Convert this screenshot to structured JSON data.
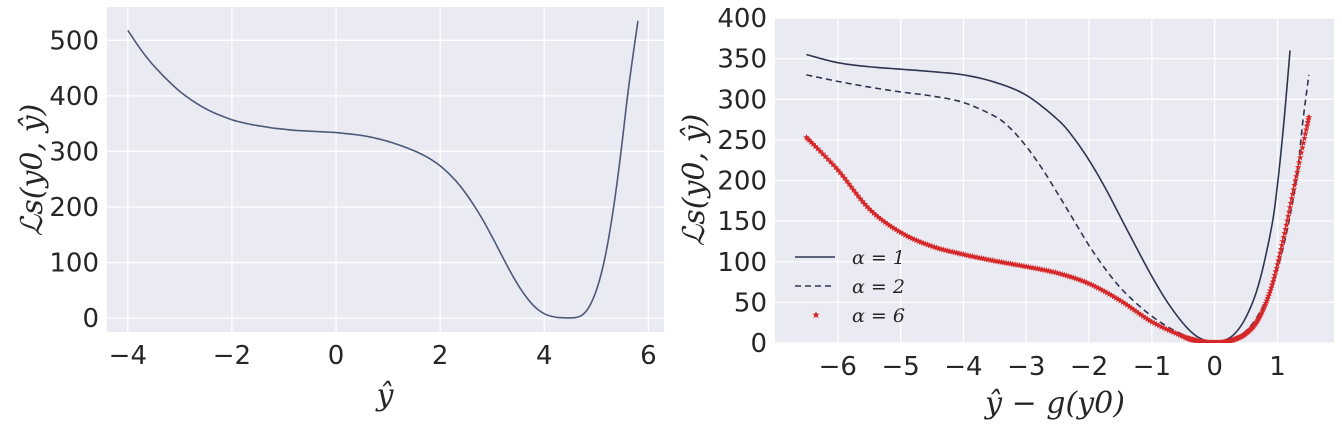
{
  "chart_data": [
    {
      "type": "line",
      "xlabel": "ŷ",
      "ylabel": "ℒs(y0, ŷ)",
      "xlim": [
        -4.4,
        6.3
      ],
      "ylim": [
        -25,
        560
      ],
      "xticks": [
        -4,
        -2,
        0,
        2,
        4,
        6
      ],
      "xtick_labels": [
        "−4",
        "−2",
        "0",
        "2",
        "4",
        "6"
      ],
      "yticks": [
        0,
        100,
        200,
        300,
        400,
        500
      ],
      "ytick_labels": [
        "0",
        "100",
        "200",
        "300",
        "400",
        "500"
      ],
      "grid": true,
      "series": [
        {
          "color": "#4c5a78",
          "style": "solid",
          "x": [
            -4.0,
            -3.8,
            -3.6,
            -3.4,
            -3.2,
            -3.0,
            -2.8,
            -2.6,
            -2.4,
            -2.2,
            -2.0,
            -1.8,
            -1.6,
            -1.4,
            -1.2,
            -1.0,
            -0.8,
            -0.6,
            -0.4,
            -0.2,
            0.0,
            0.2,
            0.4,
            0.6,
            0.8,
            1.0,
            1.2,
            1.4,
            1.6,
            1.8,
            2.0,
            2.2,
            2.4,
            2.6,
            2.8,
            3.0,
            3.2,
            3.4,
            3.6,
            3.8,
            4.0,
            4.2,
            4.4,
            4.5,
            4.6,
            4.7,
            4.8,
            4.9,
            5.0,
            5.1,
            5.2,
            5.3,
            5.4,
            5.5,
            5.6,
            5.7,
            5.8
          ],
          "y": [
            518,
            490,
            465,
            444,
            425,
            408,
            394,
            382,
            372,
            364,
            357,
            352,
            348,
            345,
            342,
            340,
            338,
            337,
            336,
            335,
            334,
            332,
            330,
            327,
            323,
            318,
            312,
            305,
            297,
            287,
            274,
            257,
            236,
            210,
            180,
            146,
            110,
            75,
            45,
            22,
            8,
            2,
            0.5,
            0.5,
            1,
            4,
            12,
            27,
            50,
            82,
            125,
            180,
            245,
            320,
            400,
            470,
            535
          ]
        }
      ]
    },
    {
      "type": "line",
      "xlabel": "ŷ − g(y0)",
      "ylabel": "ℒs(y0, ŷ)",
      "xlim": [
        -7.0,
        1.9
      ],
      "ylim": [
        0,
        400
      ],
      "xticks": [
        -6,
        -5,
        -4,
        -3,
        -2,
        -1,
        0,
        1
      ],
      "xtick_labels": [
        "−6",
        "−5",
        "−4",
        "−3",
        "−2",
        "−1",
        "0",
        "1"
      ],
      "yticks": [
        0,
        50,
        100,
        150,
        200,
        250,
        300,
        350,
        400
      ],
      "ytick_labels": [
        "0",
        "50",
        "100",
        "150",
        "200",
        "250",
        "300",
        "350",
        "400"
      ],
      "grid": true,
      "legend_position": "lower-left",
      "series": [
        {
          "name": "α = 1",
          "color": "#2e3550",
          "style": "solid",
          "x": [
            -6.5,
            -6.0,
            -5.5,
            -5.0,
            -4.5,
            -4.0,
            -3.5,
            -3.0,
            -2.5,
            -2.25,
            -2.0,
            -1.75,
            -1.5,
            -1.25,
            -1.0,
            -0.75,
            -0.5,
            -0.3,
            -0.1,
            0.0,
            0.1,
            0.3,
            0.5,
            0.7,
            0.9,
            1.0,
            1.1,
            1.2
          ],
          "y": [
            355,
            345,
            340,
            337,
            334,
            330,
            321,
            305,
            275,
            253,
            225,
            192,
            155,
            118,
            82,
            50,
            24,
            9,
            1.5,
            0,
            1.5,
            10,
            32,
            72,
            140,
            195,
            270,
            360
          ]
        },
        {
          "name": "α = 2",
          "color": "#2e3550",
          "style": "dashed",
          "x": [
            -6.5,
            -6.0,
            -5.5,
            -5.0,
            -4.5,
            -4.0,
            -3.5,
            -3.25,
            -3.0,
            -2.75,
            -2.5,
            -2.25,
            -2.0,
            -1.75,
            -1.5,
            -1.25,
            -1.0,
            -0.75,
            -0.5,
            -0.3,
            -0.1,
            0.0,
            0.1,
            0.3,
            0.5,
            0.7,
            0.9,
            1.1,
            1.3,
            1.4,
            1.5
          ],
          "y": [
            330,
            322,
            315,
            309,
            304,
            296,
            279,
            264,
            242,
            215,
            184,
            152,
            120,
            92,
            68,
            49,
            33,
            20,
            10,
            4,
            0.5,
            0,
            0.5,
            5,
            15,
            35,
            68,
            120,
            200,
            270,
            330
          ]
        },
        {
          "name": "α = 6",
          "color": "#d62728",
          "style": "marker-star",
          "x": [
            -6.5,
            -6.0,
            -5.5,
            -5.0,
            -4.5,
            -4.0,
            -3.5,
            -3.0,
            -2.5,
            -2.0,
            -1.5,
            -1.0,
            -0.5,
            -0.3,
            -0.1,
            0.0,
            0.1,
            0.3,
            0.5,
            0.7,
            0.9,
            1.1,
            1.3,
            1.5
          ],
          "y": [
            253,
            213,
            165,
            136,
            119,
            109,
            101,
            94,
            86,
            73,
            52,
            26,
            8,
            3,
            0.3,
            0,
            0.3,
            4,
            12,
            30,
            68,
            130,
            205,
            278
          ]
        }
      ]
    }
  ]
}
